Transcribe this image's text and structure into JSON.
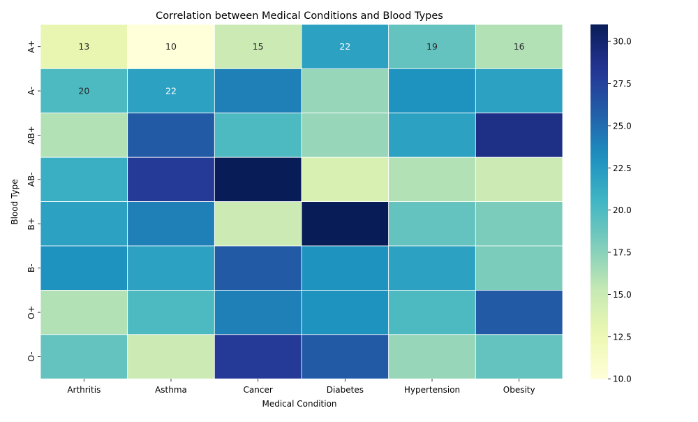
{
  "chart_data": {
    "type": "heatmap",
    "title": "Correlation between Medical Conditions and Blood Types",
    "xlabel": "Medical Condition",
    "ylabel": "Blood Type",
    "x_categories": [
      "Arthritis",
      "Asthma",
      "Cancer",
      "Diabetes",
      "Hypertension",
      "Obesity"
    ],
    "y_categories": [
      "A+",
      "A-",
      "AB+",
      "AB-",
      "B+",
      "B-",
      "O+",
      "O-"
    ],
    "values": [
      [
        13,
        10,
        15,
        22,
        19,
        16
      ],
      [
        20,
        22,
        24,
        17,
        23,
        22
      ],
      [
        16,
        26,
        20,
        17,
        22,
        29
      ],
      [
        21,
        28,
        31,
        14,
        16,
        15
      ],
      [
        22,
        24,
        15,
        31,
        19,
        18
      ],
      [
        23,
        22,
        26,
        23,
        22,
        18
      ],
      [
        16,
        20,
        24,
        23,
        20,
        26
      ],
      [
        19,
        15,
        28,
        26,
        17,
        19
      ]
    ],
    "cell_labels": [
      [
        "13",
        "10",
        "15",
        "22",
        "19",
        "16"
      ],
      [
        "20",
        "22",
        "",
        "",
        "",
        ""
      ],
      [
        "",
        "",
        "",
        "",
        "",
        ""
      ],
      [
        "",
        "",
        "",
        "",
        "",
        ""
      ],
      [
        "",
        "",
        "",
        "",
        "",
        ""
      ],
      [
        "",
        "",
        "",
        "",
        "",
        ""
      ],
      [
        "",
        "",
        "",
        "",
        "",
        ""
      ],
      [
        "",
        "",
        "",
        "",
        "",
        ""
      ]
    ],
    "colorbar": {
      "min": 10,
      "max": 31,
      "ticks": [
        "10.0",
        "12.5",
        "15.0",
        "17.5",
        "20.0",
        "22.5",
        "25.0",
        "27.5",
        "30.0"
      ],
      "colormap": "YlGnBu"
    },
    "grid": false
  }
}
